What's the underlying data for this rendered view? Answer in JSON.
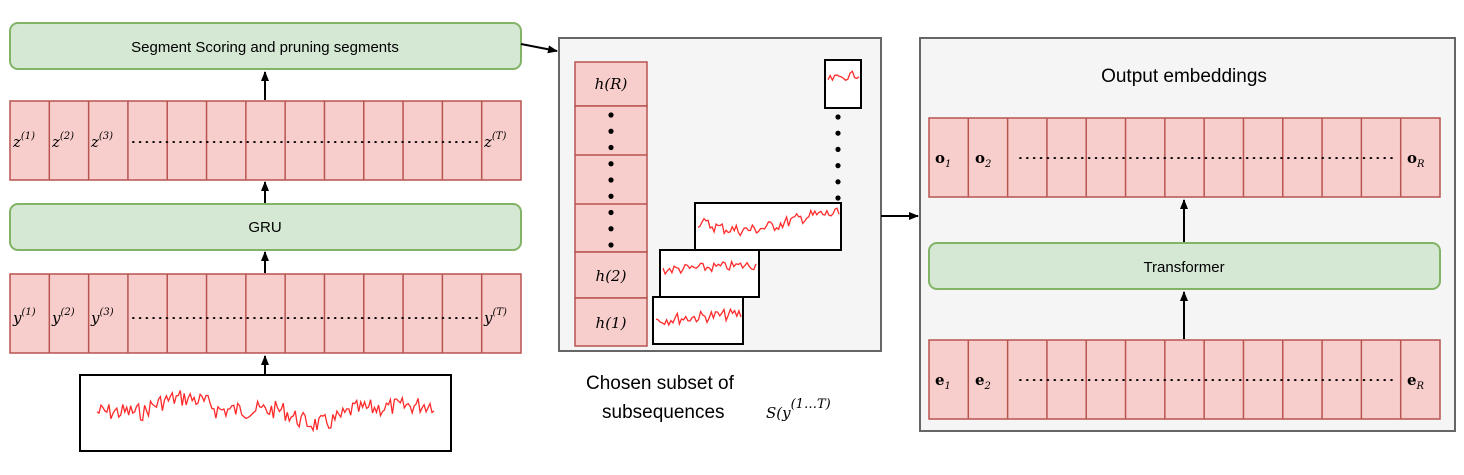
{
  "scoring_label": "Segment Scoring and pruning segments",
  "gru_label": "GRU",
  "transformer_label": "Transformer",
  "output_title": "Output embeddings",
  "caption": {
    "line1": "Chosen subset of",
    "line2": "subsequences",
    "math_base": "S(y",
    "math_sup": "(1…T)"
  },
  "z_row": {
    "var": "z",
    "sups": [
      "(1)",
      "(2)",
      "(3)"
    ],
    "last_sup": "(T)",
    "dots": "····················································"
  },
  "y_row": {
    "var": "y",
    "sups": [
      "(1)",
      "(2)",
      "(3)"
    ],
    "last_sup": "(T)",
    "dots": "····················································"
  },
  "h_col": {
    "top": "h(R)",
    "second": "h(2)",
    "first": "h(1)"
  },
  "o_row": {
    "var": "o",
    "subs": [
      "1",
      "2"
    ],
    "last_sub": "R",
    "dots": "·······················································"
  },
  "e_row": {
    "var": "e",
    "subs": [
      "1",
      "2"
    ],
    "last_sub": "R",
    "dots": "·······················································"
  },
  "colors": {
    "green_fill": "#d5e8d4",
    "green_stroke": "#82b366",
    "red_fill": "#f8cecc",
    "red_stroke": "#b85450",
    "panel_fill": "#f5f5f5",
    "signal": "#ff2a2a"
  }
}
